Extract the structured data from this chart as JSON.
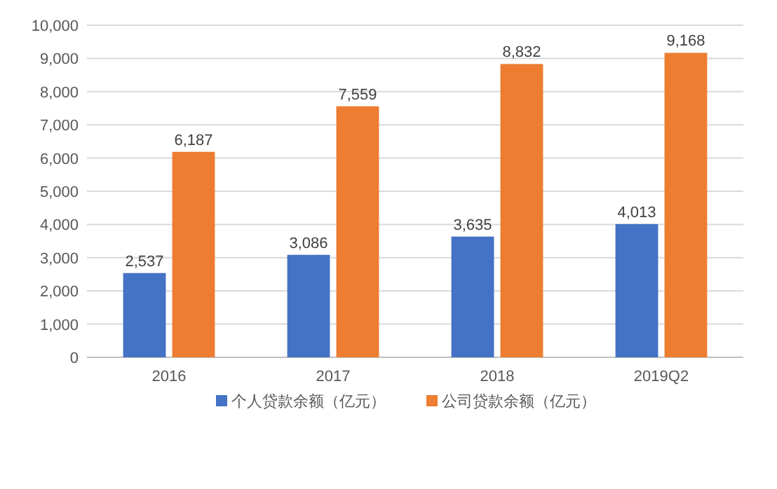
{
  "chart_data": {
    "type": "bar",
    "categories": [
      "2016",
      "2017",
      "2018",
      "2019Q2"
    ],
    "series": [
      {
        "name": "个人贷款余额（亿元）",
        "color": "#4472c4",
        "values": [
          2537,
          3086,
          3635,
          4013
        ],
        "value_labels": [
          "2,537",
          "3,086",
          "3,635",
          "4,013"
        ]
      },
      {
        "name": "公司贷款余额（亿元）",
        "color": "#ed7d31",
        "values": [
          6187,
          7559,
          8832,
          9168
        ],
        "value_labels": [
          "6,187",
          "7,559",
          "8,832",
          "9,168"
        ]
      }
    ],
    "ylim": [
      0,
      10000
    ],
    "yticks": [
      0,
      {
        "value": 1000,
        "label": "1,000"
      },
      {
        "value": 2000,
        "label": "2,000"
      },
      {
        "value": 3000,
        "label": "3,000"
      },
      {
        "value": 4000,
        "label": "4,000"
      },
      {
        "value": 5000,
        "label": "5,000"
      },
      {
        "value": 6000,
        "label": "6,000"
      },
      {
        "value": 7000,
        "label": "7,000"
      },
      {
        "value": 8000,
        "label": "8,000"
      },
      {
        "value": 9000,
        "label": "9,000"
      },
      {
        "value": 10000,
        "label": "10,000"
      }
    ],
    "grid": "y",
    "legend": "bottom"
  }
}
